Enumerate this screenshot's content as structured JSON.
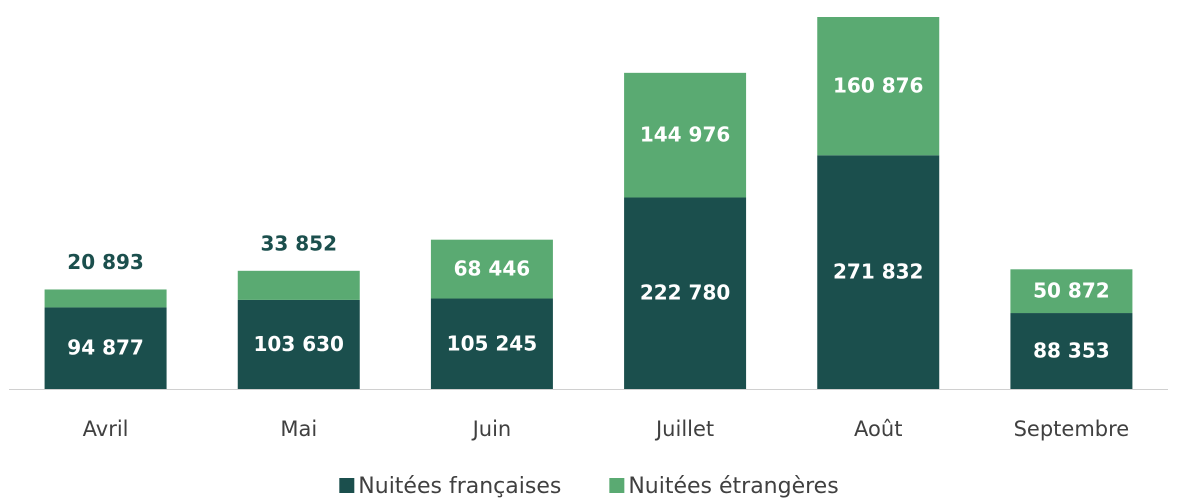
{
  "chart_data": {
    "type": "stacked-bar",
    "categories": [
      "Avril",
      "Mai",
      "Juin",
      "Juillet",
      "Août",
      "Septembre"
    ],
    "series": [
      {
        "name": "Nuitées françaises",
        "color": "#1b4f4d",
        "values": [
          94877,
          103630,
          105245,
          222780,
          271832,
          88353
        ],
        "value_labels": [
          "94 877",
          "103 630",
          "105 245",
          "222 780",
          "271 832",
          "88 353"
        ]
      },
      {
        "name": "Nuitées étrangères",
        "color": "#5aaa72",
        "values": [
          20893,
          33852,
          68446,
          144976,
          160876,
          50872
        ],
        "value_labels": [
          "20 893",
          "33 852",
          "68 446",
          "144 976",
          "160 876",
          "50 872"
        ]
      }
    ]
  }
}
